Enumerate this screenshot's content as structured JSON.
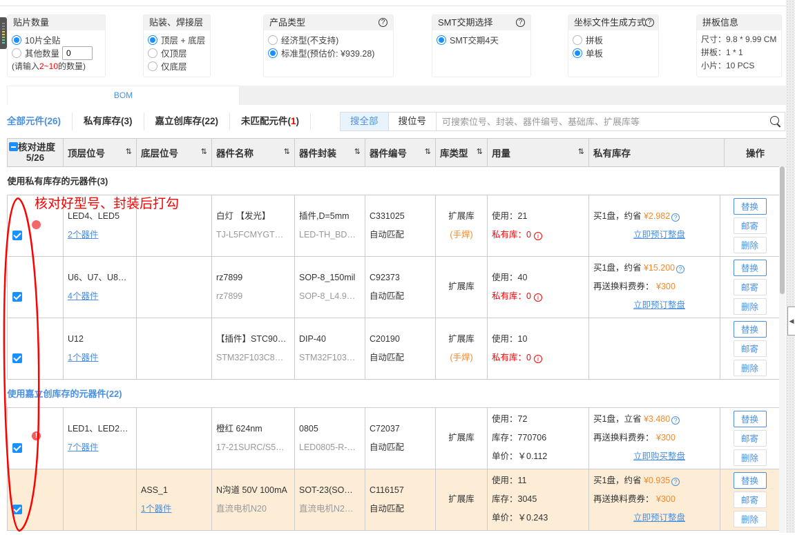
{
  "panels": {
    "qty": {
      "title": "贴片数量",
      "options": [
        "10片全贴",
        "其他数量"
      ],
      "selected": 0,
      "input_value": "0",
      "hint_pre": "(请输入",
      "hint_range": "2~10",
      "hint_post": "的数量)"
    },
    "layer": {
      "title": "贴装、焊接层",
      "options": [
        "顶层 + 底层",
        "仅顶层",
        "仅底层"
      ],
      "selected": 0
    },
    "product": {
      "title": "产品类型",
      "options": [
        "经济型(不支持)",
        "标准型(预估价: ¥939.28)"
      ],
      "selected": 1
    },
    "smt": {
      "title": "SMT交期选择",
      "options": [
        "SMT交期4天"
      ],
      "selected": 0
    },
    "coord": {
      "title": "坐标文件生成方式",
      "options": [
        "拼板",
        "单板"
      ],
      "selected": 1
    },
    "panelinfo": {
      "title": "拼板信息",
      "lines": [
        "尺寸：9.8 * 9.99 CM",
        "拼板：1 * 1",
        "小片：10 PCS"
      ]
    }
  },
  "tab": "BOM",
  "filters": [
    "全部元件(26)",
    "私有库存(3)",
    "嘉立创库存(22)",
    "未匹配元件(",
    "1",
    ")"
  ],
  "search": {
    "modes": [
      "搜全部",
      "搜位号"
    ],
    "active": 0,
    "placeholder": "可搜索位号、封装、器件编号、基础库、扩展库等"
  },
  "columns": {
    "check": "核对进度",
    "progress": "5/26",
    "top": "顶层位号",
    "bottom": "底层位号",
    "name": "器件名称",
    "pkg": "器件封装",
    "code": "器件编号",
    "lib": "库类型",
    "usage": "用量",
    "private": "私有库存",
    "ops": "操作"
  },
  "sections": [
    {
      "title": "使用私有库存的元器件(3)",
      "color": "#333333",
      "rows": [
        {
          "top": "LED4、LED5",
          "bottom": "",
          "count": "2个器件",
          "name": "白灯 【发光】",
          "name2": "TJ-L5FCMYGT…",
          "pkg": "插件,D=5mm",
          "pkg2": "LED-TH_BD…",
          "code": "C331025",
          "match": "自动匹配",
          "lib": "扩展库",
          "lib2": "(手焊)",
          "use": "使用：21",
          "stock_label": "私有库：0",
          "offer": "买1盘，约省",
          "save": "¥2.982",
          "gift": "",
          "gift_val": "",
          "order": "立即预订整盘",
          "warn": "dot"
        },
        {
          "top": "U6、U7、U8…",
          "bottom": "",
          "count": "4个器件",
          "name": "rz7899",
          "name2": "rz7899",
          "pkg": "SOP-8_150mil",
          "pkg2": "SOP-8_L4.9…",
          "code": "C92373",
          "match": "自动匹配",
          "lib": "扩展库",
          "lib2": "",
          "use": "使用：40",
          "stock_label": "私有库：0",
          "offer": "买1盘，约省",
          "save": "¥15.200",
          "gift": "再送换料费券：",
          "gift_val": "¥300",
          "order": "立即预订整盘"
        },
        {
          "top": "U12",
          "bottom": "",
          "count": "1个器件",
          "name": "【插件】STC90…",
          "name2": "STM32F103C8…",
          "pkg": "DIP-40",
          "pkg2": "STM32F103…",
          "code": "C20190",
          "match": "自动匹配",
          "lib": "扩展库",
          "lib2": "(手焊)",
          "use": "使用：10",
          "stock_label": "私有库：0",
          "offer": "",
          "save": "",
          "gift": "",
          "gift_val": "",
          "order": ""
        }
      ]
    },
    {
      "title": "使用嘉立创库存的元器件(22)",
      "color": "#4a90e2",
      "rows": [
        {
          "top": "LED1、LED2…",
          "bottom": "",
          "count": "7个器件",
          "name": "橙红 624nm",
          "name2": "17-21SURC/S5…",
          "pkg": "0805",
          "pkg2": "LED0805-R-…",
          "code": "C72037",
          "match": "自动匹配",
          "lib": "扩展库",
          "lib2": "",
          "use": "使用：72",
          "stock": "库存：770706",
          "price": "单价：￥0.112",
          "offer": "买1盘，立省",
          "save": "¥3.480",
          "gift": "再送换料费券：",
          "gift_val": "¥300",
          "order": "立即购买整盘",
          "warn": "!"
        },
        {
          "top": "",
          "bottom": "ASS_1",
          "count": "1个器件",
          "name": "N沟道 50V 100mA",
          "name2": "直流电机N20",
          "pkg": "SOT-23(SO…",
          "pkg2": "直流电机N2…",
          "code": "C116157",
          "match": "自动匹配",
          "lib": "扩展库",
          "lib2": "",
          "use": "使用：11",
          "stock": "库存：3045",
          "price": "单价：￥0.243",
          "offer": "买1盘，约省",
          "save": "¥0.935",
          "gift": "再送换料费券：",
          "gift_val": "¥300",
          "order": "立即预订整盘",
          "highlight": true
        }
      ]
    }
  ],
  "row_buttons": [
    "替换",
    "邮寄",
    "删除"
  ],
  "annotation": "核对好型号、封装后打勾",
  "colors": {
    "accent": "#1890ff",
    "link": "#4a90e2",
    "price": "#f7892b",
    "alert": "#ff0000",
    "highlight_row": "#fdecd6"
  }
}
